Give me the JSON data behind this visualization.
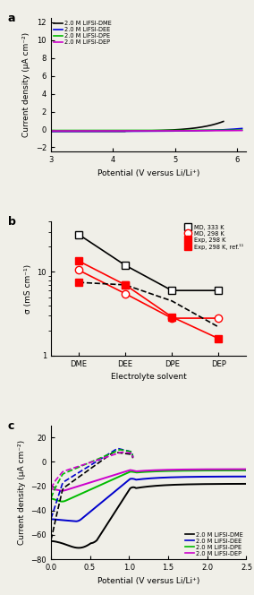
{
  "panel_a": {
    "title_label": "a",
    "xlabel": "Potential (V versus Li/Li⁺)",
    "ylabel": "Current density (μA cm⁻²)",
    "xlim": [
      3,
      6.15
    ],
    "ylim": [
      -2.5,
      12.5
    ],
    "yticks": [
      -2,
      0,
      2,
      4,
      6,
      8,
      10,
      12
    ],
    "xticks": [
      3,
      4,
      5,
      6
    ],
    "colors": [
      "black",
      "#0000dd",
      "#00bb00",
      "#cc00cc"
    ],
    "labels": [
      "2.0 M LiFSI-DME",
      "2.0 M LiFSI-DEE",
      "2.0 M LiFSI-DPE",
      "2.0 M LiFSI-DEP"
    ]
  },
  "panel_b": {
    "title_label": "b",
    "xlabel": "Electrolyte solvent",
    "ylabel": "σ (mS cm⁻¹)",
    "xtick_labels": [
      "DME",
      "DEE",
      "DPE",
      "DEP"
    ],
    "ylim": [
      1,
      40
    ],
    "md333_vals": [
      28.0,
      12.0,
      6.0,
      6.0
    ],
    "md298_vals": [
      10.5,
      5.5,
      2.8,
      2.8
    ],
    "exp298_vals": [
      13.5,
      7.0,
      2.9,
      1.6
    ],
    "exp298ref_vals": [
      7.5,
      7.0,
      4.5,
      2.2
    ],
    "labels": [
      "MD, 333 K",
      "MD, 298 K",
      "Exp, 298 K",
      "Exp, 298 K, ref.¹¹"
    ]
  },
  "panel_c": {
    "title_label": "c",
    "xlabel": "Potential (V versus Li/Li⁺)",
    "ylabel": "Current density (μA cm⁻²)",
    "xlim": [
      0,
      2.5
    ],
    "ylim": [
      -80,
      30
    ],
    "yticks": [
      -80,
      -60,
      -40,
      -20,
      0,
      20
    ],
    "xticks": [
      0,
      0.5,
      1.0,
      1.5,
      2.0,
      2.5
    ],
    "colors": [
      "black",
      "#0000cc",
      "#00bb00",
      "#cc00cc"
    ],
    "labels": [
      "2.0 M LiFSI-DME",
      "2.0 M LiFSI-DEE",
      "2.0 M LiFSI-DPE",
      "2.0 M LiFSI-DEP"
    ]
  }
}
